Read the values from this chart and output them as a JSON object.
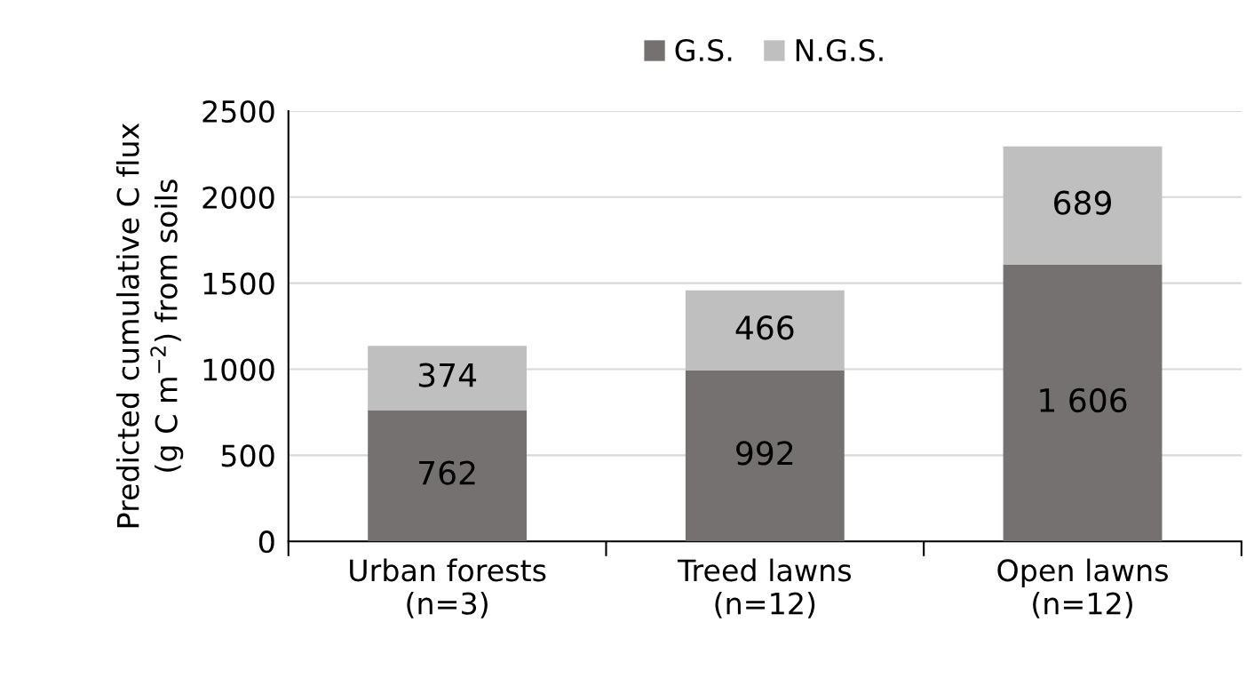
{
  "chart_data": {
    "type": "bar",
    "stacked": true,
    "ylabel": "Predicted cumulative C flux\n(g C m$^{−2}$) from soils",
    "categories": [
      "Urban forests\n(n=3)",
      "Treed lawns\n(n=12)",
      "Open lawns\n(n=12)"
    ],
    "series": [
      {
        "name": "G.S.",
        "color": "#767171",
        "values": [
          762,
          992,
          1606
        ],
        "value_labels": [
          "762",
          "992",
          "1 606"
        ]
      },
      {
        "name": "N.G.S.",
        "color": "#bfbfbf",
        "values": [
          374,
          466,
          689
        ],
        "value_labels": [
          "374",
          "466",
          "689"
        ]
      }
    ],
    "ylim": [
      0,
      2500
    ],
    "yticks": [
      0,
      500,
      1000,
      1500,
      2000,
      2500
    ],
    "grid": "y",
    "legend": "top"
  }
}
